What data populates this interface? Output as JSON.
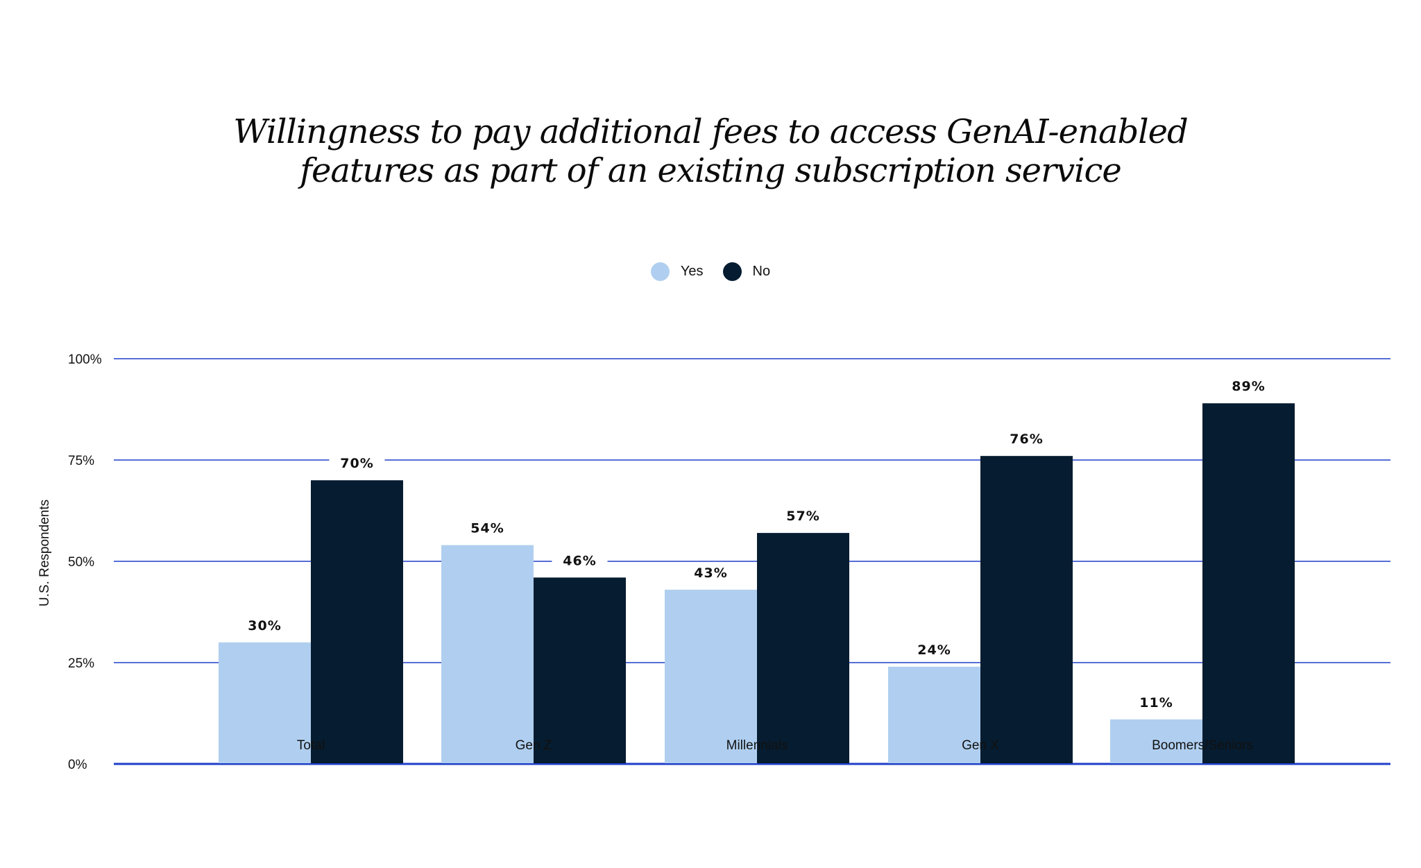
{
  "chart_data": {
    "type": "bar",
    "title": "Willingness to pay additional fees to access GenAI-enabled features as part of an existing subscription service",
    "title_lines": [
      "Willingness to pay additional fees to access GenAI-enabled",
      "features as part of an existing subscription service"
    ],
    "xlabel": "",
    "ylabel": "U.S. Respondents",
    "ylim": [
      0,
      100
    ],
    "yticks": [
      "0%",
      "25%",
      "50%",
      "75%",
      "100%"
    ],
    "ytick_values": [
      0,
      25,
      50,
      75,
      100
    ],
    "grid": true,
    "legend_position": "top-center",
    "categories": [
      "Total",
      "Gen Z",
      "Millennials",
      "Gen X",
      "Boomers/Seniors"
    ],
    "series": [
      {
        "name": "Yes",
        "color": "#b0cff0",
        "values": [
          30,
          54,
          43,
          24,
          11
        ],
        "labels": [
          "30%",
          "54%",
          "43%",
          "24%",
          "11%"
        ]
      },
      {
        "name": "No",
        "color": "#061c30",
        "values": [
          70,
          46,
          57,
          76,
          89
        ],
        "labels": [
          "70%",
          "46%",
          "57%",
          "76%",
          "89%"
        ]
      }
    ],
    "grid_color": "#1f3fc8"
  }
}
